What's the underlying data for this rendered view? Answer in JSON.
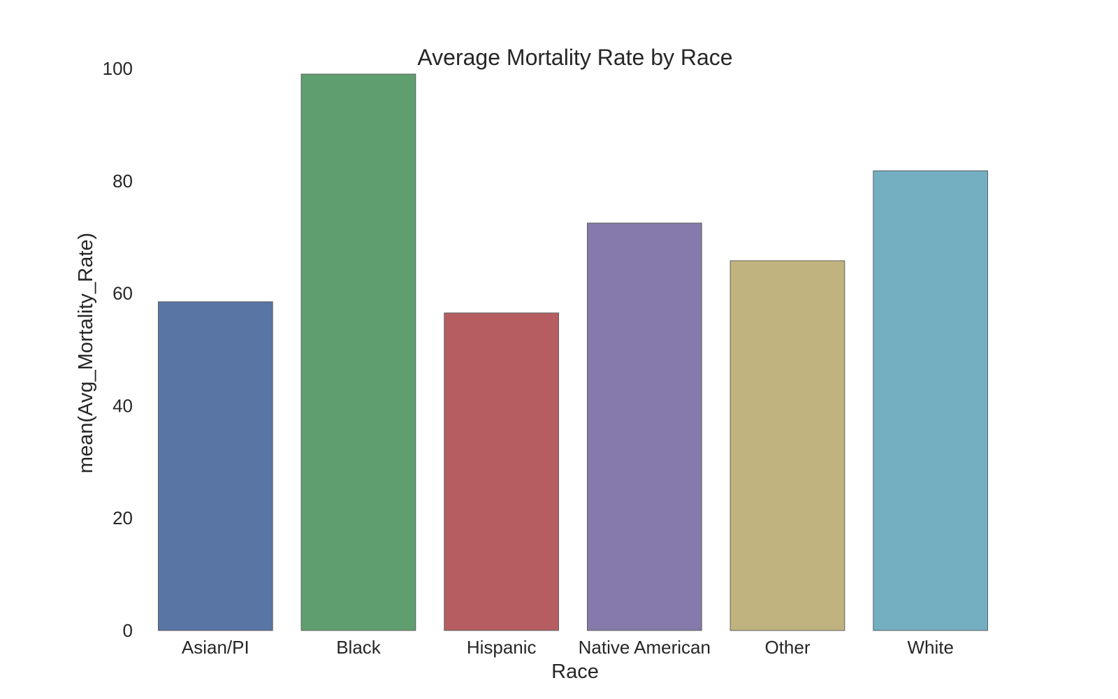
{
  "chart_data": {
    "type": "bar",
    "title": "Average Mortality Rate by Race",
    "xlabel": "Race",
    "ylabel": "mean(Avg_Mortality_Rate)",
    "categories": [
      "Asian/PI",
      "Black",
      "Hispanic",
      "Native American",
      "Other",
      "White"
    ],
    "values": [
      58.5,
      99.0,
      56.5,
      72.5,
      65.8,
      81.8
    ],
    "colors": [
      "#5975a4",
      "#5f9e6e",
      "#b55d60",
      "#857aab",
      "#c1b37f",
      "#73afc1"
    ],
    "ylim": [
      0,
      100
    ],
    "yticks": [
      0,
      20,
      40,
      60,
      80,
      100
    ],
    "grid": false,
    "legend": "none"
  }
}
